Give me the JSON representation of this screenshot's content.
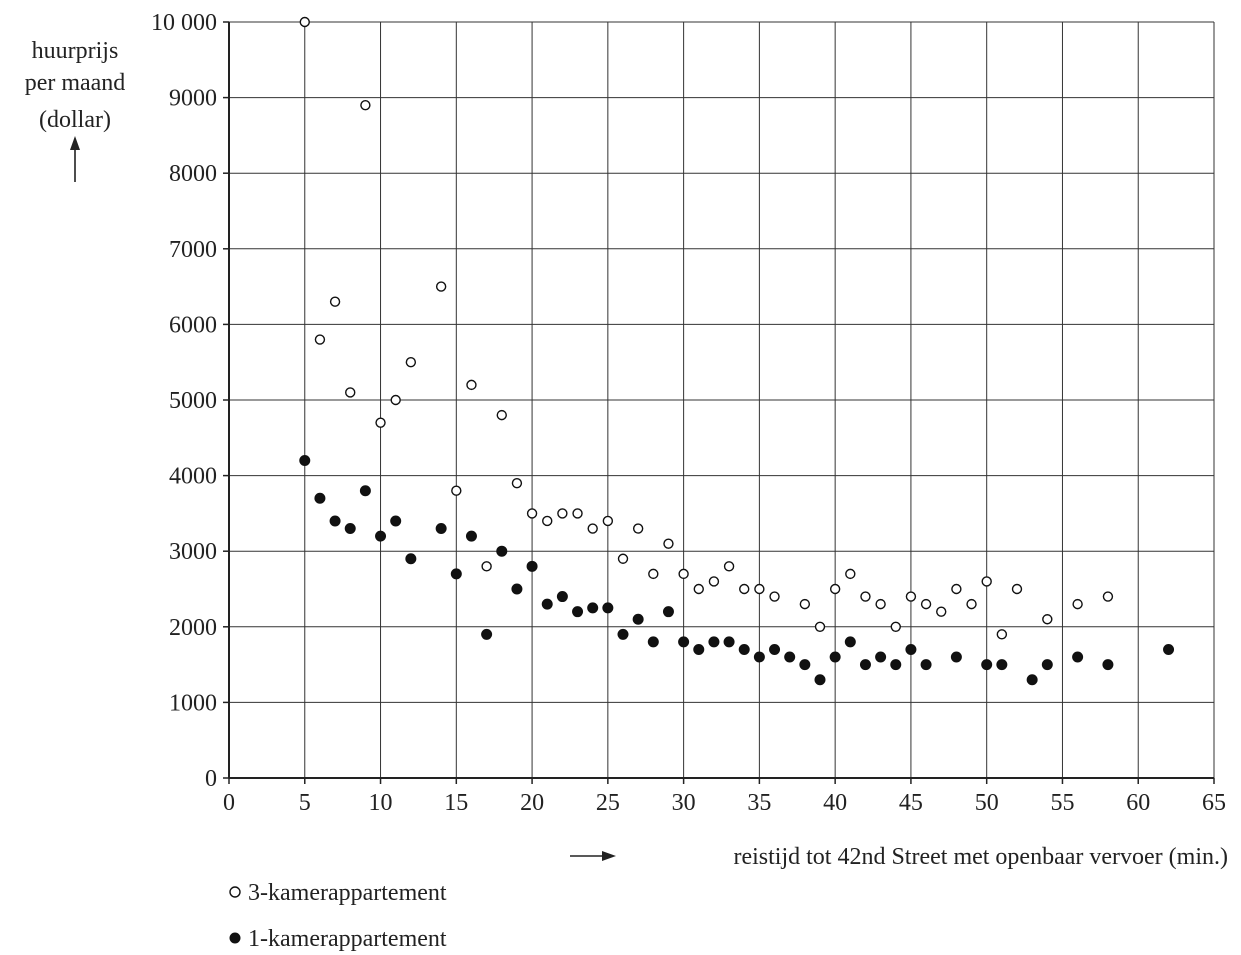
{
  "chart_data": {
    "type": "scatter",
    "ylabel_lines": [
      "huurprijs",
      "per maand",
      "(dollar)"
    ],
    "xlabel": "reistijd tot 42nd Street met openbaar vervoer (min.)",
    "xlim": [
      0,
      65
    ],
    "ylim": [
      0,
      10000
    ],
    "x_ticks": [
      0,
      5,
      10,
      15,
      20,
      25,
      30,
      35,
      40,
      45,
      50,
      55,
      60,
      65
    ],
    "y_ticks": [
      0,
      1000,
      2000,
      3000,
      4000,
      5000,
      6000,
      7000,
      8000,
      9000,
      10000
    ],
    "x_tick_labels": [
      "0",
      "5",
      "10",
      "15",
      "20",
      "25",
      "30",
      "35",
      "40",
      "45",
      "50",
      "55",
      "60",
      "65"
    ],
    "y_tick_labels": [
      "0",
      "1000",
      "2000",
      "3000",
      "4000",
      "5000",
      "6000",
      "7000",
      "8000",
      "9000",
      "10 000"
    ],
    "grid": true,
    "legend_position": "bottom-left",
    "series": [
      {
        "name": "3-kamerappartement",
        "marker": "open-circle",
        "points": [
          [
            5,
            10000
          ],
          [
            6,
            5800
          ],
          [
            7,
            6300
          ],
          [
            8,
            5100
          ],
          [
            9,
            8900
          ],
          [
            10,
            4700
          ],
          [
            11,
            5000
          ],
          [
            12,
            5500
          ],
          [
            14,
            6500
          ],
          [
            15,
            3800
          ],
          [
            16,
            5200
          ],
          [
            17,
            2800
          ],
          [
            18,
            4800
          ],
          [
            19,
            3900
          ],
          [
            20,
            3500
          ],
          [
            21,
            3400
          ],
          [
            22,
            3500
          ],
          [
            23,
            3500
          ],
          [
            24,
            3300
          ],
          [
            25,
            3400
          ],
          [
            26,
            2900
          ],
          [
            27,
            3300
          ],
          [
            28,
            2700
          ],
          [
            29,
            3100
          ],
          [
            30,
            2700
          ],
          [
            31,
            2500
          ],
          [
            32,
            2600
          ],
          [
            33,
            2800
          ],
          [
            34,
            2500
          ],
          [
            35,
            2500
          ],
          [
            36,
            2400
          ],
          [
            38,
            2300
          ],
          [
            39,
            2000
          ],
          [
            40,
            2500
          ],
          [
            41,
            2700
          ],
          [
            42,
            2400
          ],
          [
            43,
            2300
          ],
          [
            44,
            2000
          ],
          [
            45,
            2400
          ],
          [
            46,
            2300
          ],
          [
            47,
            2200
          ],
          [
            48,
            2500
          ],
          [
            49,
            2300
          ],
          [
            50,
            2600
          ],
          [
            51,
            1900
          ],
          [
            52,
            2500
          ],
          [
            54,
            2100
          ],
          [
            56,
            2300
          ],
          [
            58,
            2400
          ]
        ]
      },
      {
        "name": "1-kamerappartement",
        "marker": "filled-circle",
        "points": [
          [
            5,
            4200
          ],
          [
            6,
            3700
          ],
          [
            7,
            3400
          ],
          [
            8,
            3300
          ],
          [
            9,
            3800
          ],
          [
            10,
            3200
          ],
          [
            11,
            3400
          ],
          [
            12,
            2900
          ],
          [
            14,
            3300
          ],
          [
            15,
            2700
          ],
          [
            16,
            3200
          ],
          [
            17,
            1900
          ],
          [
            18,
            3000
          ],
          [
            19,
            2500
          ],
          [
            20,
            2800
          ],
          [
            21,
            2300
          ],
          [
            22,
            2400
          ],
          [
            23,
            2200
          ],
          [
            24,
            2250
          ],
          [
            25,
            2250
          ],
          [
            26,
            1900
          ],
          [
            27,
            2100
          ],
          [
            28,
            1800
          ],
          [
            29,
            2200
          ],
          [
            30,
            1800
          ],
          [
            31,
            1700
          ],
          [
            32,
            1800
          ],
          [
            33,
            1800
          ],
          [
            34,
            1700
          ],
          [
            35,
            1600
          ],
          [
            36,
            1700
          ],
          [
            37,
            1600
          ],
          [
            38,
            1500
          ],
          [
            39,
            1300
          ],
          [
            40,
            1600
          ],
          [
            41,
            1800
          ],
          [
            42,
            1500
          ],
          [
            43,
            1600
          ],
          [
            44,
            1500
          ],
          [
            45,
            1700
          ],
          [
            46,
            1500
          ],
          [
            48,
            1600
          ],
          [
            50,
            1500
          ],
          [
            51,
            1500
          ],
          [
            53,
            1300
          ],
          [
            54,
            1500
          ],
          [
            56,
            1600
          ],
          [
            58,
            1500
          ],
          [
            62,
            1700
          ]
        ]
      }
    ]
  }
}
